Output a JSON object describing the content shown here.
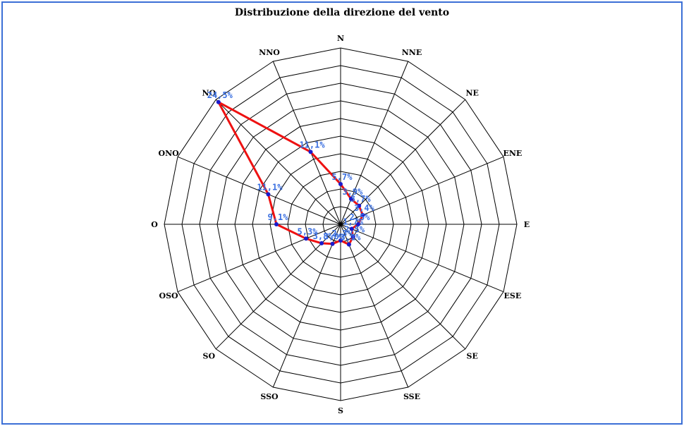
{
  "chart_data": {
    "type": "radar",
    "title": "Distribuzione della direzione del vento",
    "categories": [
      "N",
      "NNE",
      "NE",
      "ENE",
      "E",
      "ESE",
      "SE",
      "SSE",
      "S",
      "SSO",
      "SO",
      "OSO",
      "O",
      "ONO",
      "NO",
      "NNO"
    ],
    "series": [
      {
        "values": [
          5.7,
          3.9,
          3.7,
          3.4,
          2.5,
          1.7,
          2.5,
          3.1,
          2.3,
          3.0,
          3.8,
          5.3,
          9.1,
          11.1,
          24.5,
          11.1
        ],
        "labels": [
          "5,7%",
          "3,9%",
          "3,7%",
          "3,4%",
          "2,5%",
          "1,7%",
          "2,5%",
          "3,1%",
          "2,3%",
          "3,0%",
          "3,8%",
          "5,3%",
          "9,1%",
          "11,1%",
          "24,5%",
          "11,1%"
        ]
      }
    ],
    "rmax": 25,
    "ring_step": 2.5,
    "grid": true,
    "colors": {
      "line": "#ee1111",
      "point": "#1a1acc",
      "label": "#3a6fe0",
      "grid": "#000000",
      "frame": "#3b6fd6"
    }
  }
}
